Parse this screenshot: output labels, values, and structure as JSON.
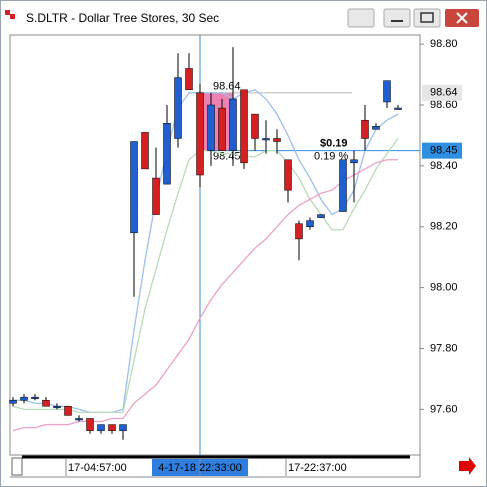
{
  "chart_data": {
    "type": "candlestick",
    "title": "S.DLTR - Dollar Tree Stores, 30 Sec",
    "categories": [
      null,
      null,
      null,
      null,
      null,
      "17-04:57:00",
      null,
      null,
      null,
      null,
      null,
      null,
      null,
      null,
      null,
      null,
      null,
      "4-17-18 22:33:00",
      null,
      null,
      null,
      null,
      null,
      null,
      null,
      "17-22:37:00",
      null,
      null,
      null,
      null,
      null,
      null,
      null,
      null,
      null,
      null
    ],
    "open": [
      97.62,
      97.63,
      97.64,
      97.63,
      97.61,
      97.61,
      97.57,
      97.57,
      97.53,
      97.55,
      97.53,
      98.18,
      98.51,
      98.36,
      98.34,
      98.49,
      98.72,
      98.64,
      98.45,
      98.59,
      98.45,
      98.65,
      98.57,
      98.49,
      98.49,
      98.42,
      98.21,
      98.2,
      98.23,
      null,
      98.25,
      98.41,
      98.55,
      98.52,
      98.61,
      98.59
    ],
    "high": [
      97.64,
      97.65,
      97.65,
      97.64,
      97.62,
      97.61,
      97.58,
      97.57,
      97.55,
      97.55,
      97.55,
      98.48,
      98.51,
      98.46,
      98.6,
      98.77,
      98.77,
      98.67,
      98.64,
      98.62,
      98.79,
      98.65,
      98.57,
      98.55,
      98.52,
      98.42,
      98.22,
      98.23,
      98.24,
      null,
      98.42,
      98.45,
      98.6,
      98.54,
      98.68,
      98.6
    ],
    "low": [
      97.61,
      97.62,
      97.63,
      97.61,
      97.6,
      97.58,
      97.56,
      97.52,
      97.52,
      97.52,
      97.5,
      97.97,
      98.39,
      98.24,
      98.34,
      98.46,
      98.65,
      98.33,
      98.4,
      98.45,
      98.4,
      98.39,
      98.45,
      98.44,
      98.44,
      98.28,
      98.09,
      98.19,
      98.23,
      null,
      98.25,
      98.28,
      98.45,
      98.52,
      98.59,
      98.59
    ],
    "close": [
      97.63,
      97.64,
      97.64,
      97.61,
      97.61,
      97.58,
      97.57,
      97.53,
      97.55,
      97.53,
      97.55,
      98.48,
      98.39,
      98.24,
      98.54,
      98.69,
      98.65,
      98.37,
      98.6,
      98.45,
      98.62,
      98.41,
      98.49,
      98.49,
      98.48,
      98.32,
      98.16,
      98.22,
      98.24,
      null,
      98.42,
      98.42,
      98.49,
      98.53,
      98.68,
      98.59
    ],
    "up_color": "#1f5fd0",
    "down_color": "#d42020",
    "series": [
      {
        "color": "#9cc0ec",
        "values": [
          97.63,
          97.63,
          97.62,
          97.62,
          97.61,
          97.61,
          97.6,
          97.59,
          97.59,
          97.59,
          97.6,
          97.86,
          98.09,
          98.29,
          98.45,
          98.59,
          98.64,
          98.64,
          98.64,
          98.64,
          98.62,
          98.64,
          98.65,
          98.62,
          98.57,
          98.5,
          98.42,
          98.36,
          98.29,
          98.24,
          98.26,
          98.32,
          98.45,
          98.52,
          98.55,
          98.57
        ]
      },
      {
        "color": "#b9dcb9",
        "values": [
          97.61,
          97.6,
          97.6,
          97.6,
          97.6,
          97.6,
          97.59,
          97.59,
          97.59,
          97.59,
          97.59,
          97.76,
          97.93,
          98.06,
          98.19,
          98.31,
          98.42,
          98.45,
          98.45,
          98.44,
          98.44,
          98.43,
          98.43,
          98.45,
          98.45,
          98.41,
          98.36,
          98.29,
          98.24,
          98.19,
          98.19,
          98.26,
          98.32,
          98.39,
          98.44,
          98.49
        ]
      },
      {
        "color": "#f0a0c8",
        "values": [
          97.53,
          97.54,
          97.54,
          97.55,
          97.55,
          97.55,
          97.56,
          97.56,
          97.56,
          97.57,
          97.57,
          97.62,
          97.65,
          97.68,
          97.73,
          97.78,
          97.83,
          97.9,
          97.96,
          98.01,
          98.05,
          98.09,
          98.13,
          98.16,
          98.2,
          98.24,
          98.27,
          98.29,
          98.31,
          98.32,
          98.35,
          98.37,
          98.39,
          98.41,
          98.42,
          98.42
        ]
      }
    ],
    "ylim": [
      97.45,
      98.83
    ],
    "yticks": [
      {
        "value": 97.6,
        "label": "97.60"
      },
      {
        "value": 97.8,
        "label": "97.80"
      },
      {
        "value": 98.0,
        "label": "98.00"
      },
      {
        "value": 98.2,
        "label": "98.20"
      },
      {
        "value": 98.4,
        "label": "98.40"
      },
      {
        "value": 98.6,
        "label": "98.60"
      },
      {
        "value": 98.8,
        "label": "98.80"
      }
    ],
    "price_labels": [
      98.64,
      98.45
    ],
    "annotations": {
      "box_top": 98.64,
      "box_bottom": 98.45,
      "change": "$0.19",
      "change_percent": "0.19 %"
    }
  }
}
